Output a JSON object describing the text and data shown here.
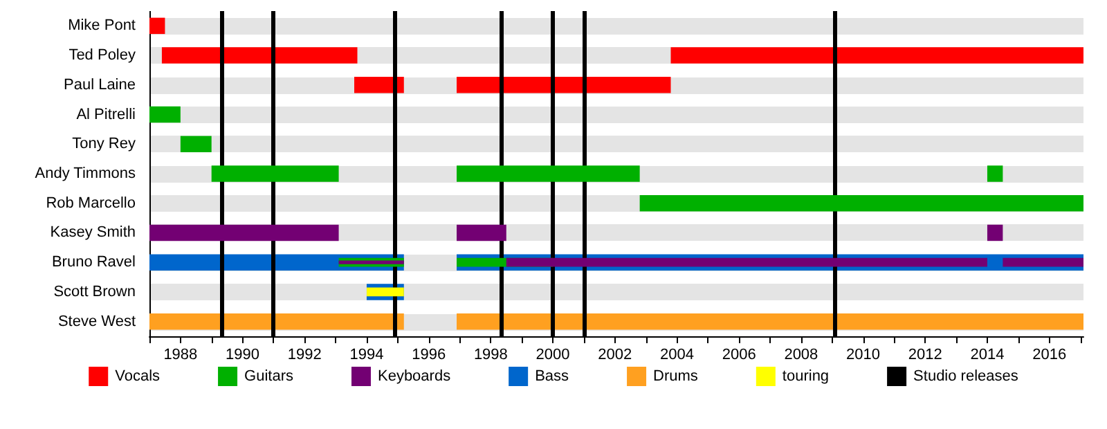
{
  "chart_data": {
    "type": "bar",
    "orientation": "horizontal",
    "categories": [
      "Mike Pont",
      "Ted Poley",
      "Paul Laine",
      "Al Pitrelli",
      "Tony Rey",
      "Andy Timmons",
      "Rob Marcello",
      "Kasey Smith",
      "Bruno Ravel",
      "Scott Brown",
      "Steve West"
    ],
    "series": [
      {
        "name": "Vocals",
        "color": "#ff0000",
        "base": [
          1987,
          1987.4,
          1993.6,
          null,
          null,
          null,
          null,
          null,
          null,
          null,
          null
        ],
        "values": [
          0.5,
          6.3,
          1.6,
          null,
          null,
          null,
          null,
          null,
          null,
          null,
          null
        ]
      },
      {
        "color": "#ff0000",
        "base": [
          null,
          2003.8,
          1996.9,
          null,
          null,
          null,
          null,
          null,
          null,
          null,
          null
        ],
        "values": [
          null,
          13.3,
          6.9,
          null,
          null,
          null,
          null,
          null,
          null,
          null,
          null
        ]
      },
      {
        "name": "Guitars",
        "color": "#00b000",
        "base": [
          null,
          null,
          null,
          1987,
          1988,
          1989,
          2002.8,
          null,
          1993.1,
          null,
          null
        ],
        "values": [
          null,
          null,
          null,
          1.0,
          1.0,
          4.1,
          14.3,
          null,
          2.1,
          null,
          null
        ]
      },
      {
        "color": "#00b000",
        "base": [
          null,
          null,
          null,
          null,
          null,
          1996.9,
          null,
          null,
          1996.9,
          null,
          null
        ],
        "values": [
          null,
          null,
          null,
          null,
          null,
          5.9,
          null,
          null,
          3.1,
          null,
          null
        ]
      },
      {
        "color": "#00b000",
        "base": [
          null,
          null,
          null,
          null,
          null,
          2014,
          null,
          null,
          null,
          null,
          null
        ],
        "values": [
          null,
          null,
          null,
          null,
          null,
          0.5,
          null,
          null,
          null,
          null,
          null
        ]
      },
      {
        "name": "Keyboards",
        "color": "#730073",
        "base": [
          null,
          null,
          null,
          null,
          null,
          null,
          null,
          1987,
          1993.1,
          null,
          null
        ],
        "values": [
          null,
          null,
          null,
          null,
          null,
          null,
          null,
          6.1,
          2.1,
          null,
          null
        ]
      },
      {
        "color": "#730073",
        "base": [
          null,
          null,
          null,
          null,
          null,
          null,
          null,
          1996.9,
          1998.5,
          null,
          null
        ],
        "values": [
          null,
          null,
          null,
          null,
          null,
          null,
          null,
          1.6,
          15.5,
          null,
          null
        ]
      },
      {
        "color": "#730073",
        "base": [
          null,
          null,
          null,
          null,
          null,
          null,
          null,
          2014,
          2014.5,
          null,
          null
        ],
        "values": [
          null,
          null,
          null,
          null,
          null,
          null,
          null,
          0.5,
          2.6,
          null,
          null
        ]
      },
      {
        "name": "Bass",
        "color": "#0066cc",
        "base": [
          null,
          null,
          null,
          null,
          null,
          null,
          null,
          null,
          1987,
          1994,
          null
        ],
        "values": [
          null,
          null,
          null,
          null,
          null,
          null,
          null,
          null,
          8.2,
          1.2,
          null
        ]
      },
      {
        "color": "#0066cc",
        "base": [
          null,
          null,
          null,
          null,
          null,
          null,
          null,
          null,
          1996.9,
          null,
          null
        ],
        "values": [
          null,
          null,
          null,
          null,
          null,
          null,
          null,
          null,
          20.2,
          null,
          null
        ]
      },
      {
        "name": "Drums",
        "color": "#ffa020",
        "base": [
          null,
          null,
          null,
          null,
          null,
          null,
          null,
          null,
          null,
          null,
          1987
        ],
        "values": [
          null,
          null,
          null,
          null,
          null,
          null,
          null,
          null,
          null,
          null,
          8.2
        ]
      },
      {
        "color": "#ffa020",
        "base": [
          null,
          null,
          null,
          null,
          null,
          null,
          null,
          null,
          null,
          null,
          1996.9
        ],
        "values": [
          null,
          null,
          null,
          null,
          null,
          null,
          null,
          null,
          null,
          null,
          20.2
        ]
      },
      {
        "name": "touring",
        "color": "#ffff00",
        "base": [
          null,
          null,
          null,
          null,
          null,
          null,
          null,
          null,
          null,
          1994,
          null
        ],
        "values": [
          null,
          null,
          null,
          null,
          null,
          null,
          null,
          null,
          null,
          1.2,
          null
        ]
      }
    ],
    "xlim": [
      1987,
      2017.1
    ],
    "xticks": [
      {
        "value": 1987,
        "label": null
      },
      1988,
      {
        "value": 1989,
        "label": null
      },
      1990,
      {
        "value": 1991,
        "label": null
      },
      1992,
      {
        "value": 1993,
        "label": null
      },
      1994,
      {
        "value": 1995,
        "label": null
      },
      1996,
      {
        "value": 1997,
        "label": null
      },
      1998,
      {
        "value": 1999,
        "label": null
      },
      2000,
      {
        "value": 2001,
        "label": null
      },
      2002,
      {
        "value": 2003,
        "label": null
      },
      2004,
      {
        "value": 2005,
        "label": null
      },
      2006,
      {
        "value": 2007,
        "label": null
      },
      2008,
      {
        "value": 2009,
        "label": null
      },
      2010,
      {
        "value": 2011,
        "label": null
      },
      2012,
      {
        "value": 2013,
        "label": null
      },
      2014,
      {
        "value": 2015,
        "label": null
      },
      2016,
      {
        "value": 2017,
        "label": null
      }
    ],
    "ref_lines": [
      {
        "axis": "x",
        "value": 1989.35,
        "label": "Studio releases",
        "color": "#000000"
      },
      {
        "axis": "x",
        "value": 1991.0,
        "label": null,
        "color": "#000000"
      },
      {
        "axis": "x",
        "value": 1994.9,
        "label": null,
        "color": "#000000"
      },
      {
        "axis": "x",
        "value": 1998.35,
        "label": null,
        "color": "#000000"
      },
      {
        "axis": "x",
        "value": 2000.0,
        "label": null,
        "color": "#000000"
      },
      {
        "axis": "x",
        "value": 2001.0,
        "label": null,
        "color": "#000000"
      },
      {
        "axis": "x",
        "value": 2009.1,
        "label": null,
        "color": "#000000"
      }
    ],
    "grid": "y",
    "legend": "bottom"
  }
}
